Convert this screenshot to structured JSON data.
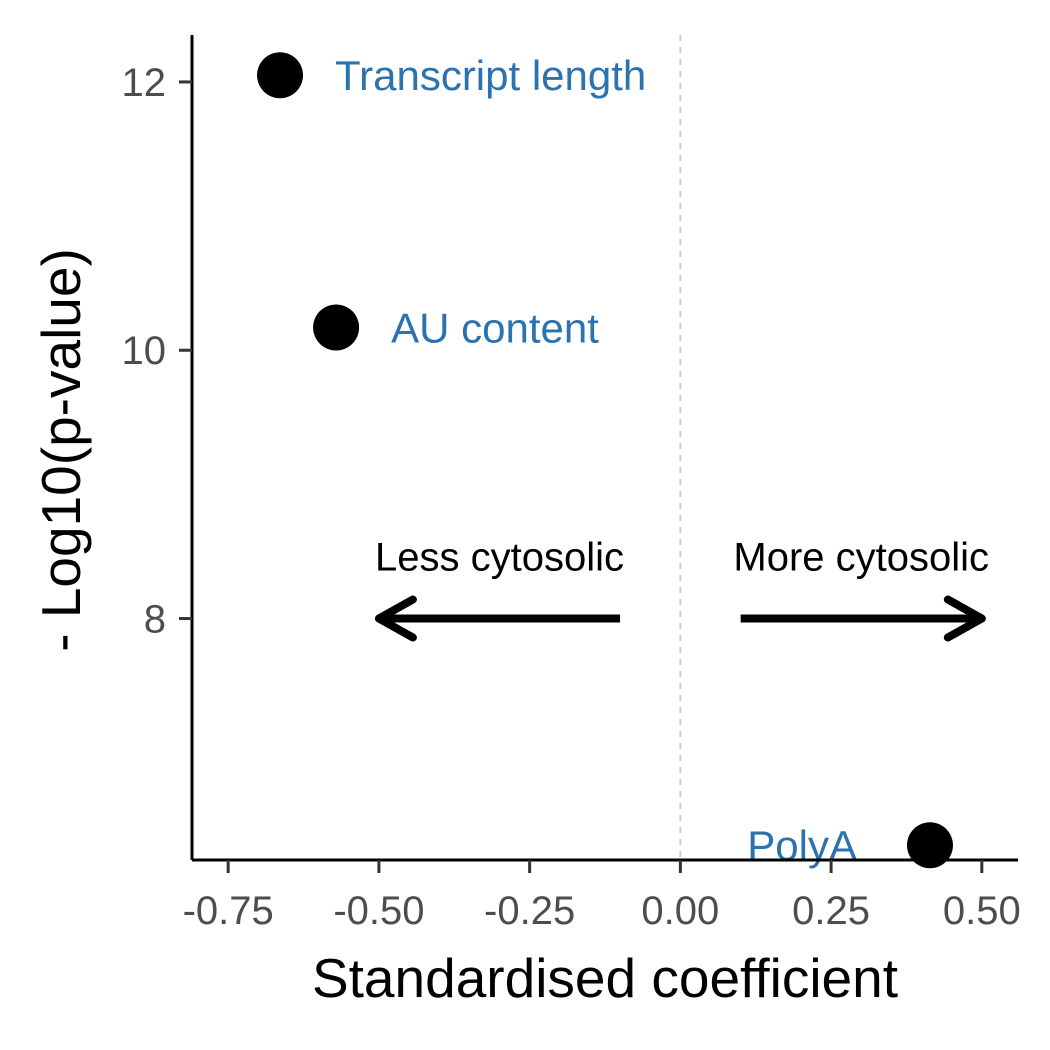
{
  "chart_data": {
    "type": "scatter",
    "title": "",
    "xlabel": "Standardised coefficient",
    "ylabel": "- Log10(p-value)",
    "xlim": [
      -0.81,
      0.56
    ],
    "ylim": [
      6.2,
      12.35
    ],
    "x_ticks": [
      -0.75,
      -0.5,
      -0.25,
      0.0,
      0.25,
      0.5
    ],
    "x_tick_labels": [
      "-0.75",
      "-0.50",
      "-0.25",
      "0.00",
      "0.25",
      "0.50"
    ],
    "y_ticks": [
      8,
      10,
      12
    ],
    "y_tick_labels": [
      "8",
      "10",
      "12"
    ],
    "grid": false,
    "reference_line": {
      "x": 0,
      "style": "dashed",
      "color": "#cccccc"
    },
    "point_color": "#000000",
    "label_color": "#2b72b0",
    "points": [
      {
        "label": "Transcript length",
        "x": -0.664,
        "y": 12.05
      },
      {
        "label": "AU content",
        "x": -0.571,
        "y": 10.17
      },
      {
        "label": "PolyA",
        "x": 0.414,
        "y": 6.31
      }
    ],
    "annotations": [
      {
        "text": "Less cytosolic",
        "direction": "left",
        "arrow_from": -0.1,
        "arrow_to": -0.5,
        "y": 8
      },
      {
        "text": "More cytosolic",
        "direction": "right",
        "arrow_from": 0.1,
        "arrow_to": 0.5,
        "y": 8
      }
    ]
  }
}
